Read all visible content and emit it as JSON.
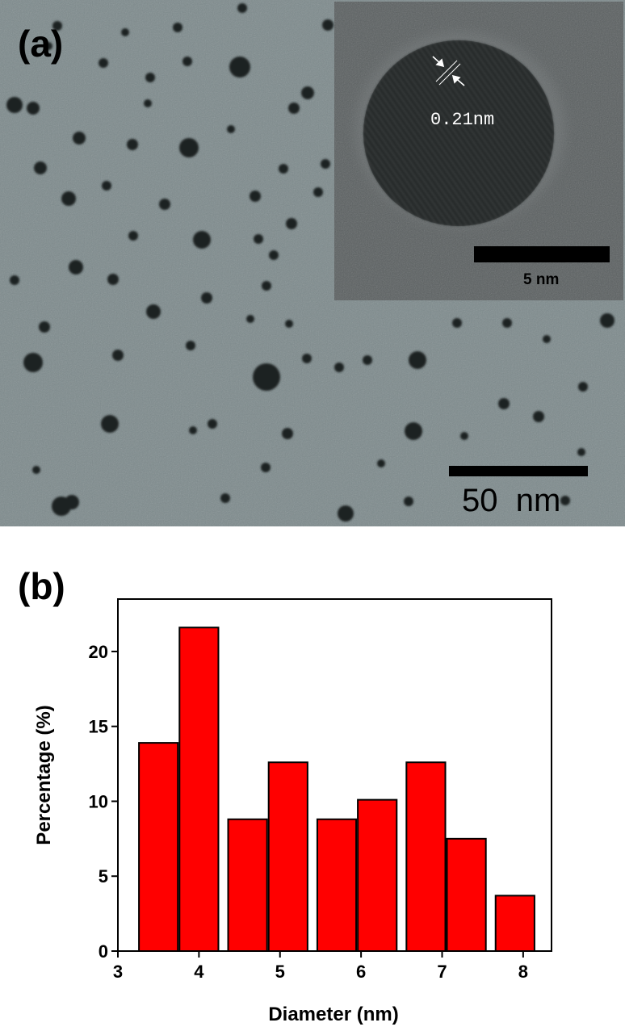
{
  "panel_a": {
    "label": "(a)",
    "inset_lattice_label": "0.21nm",
    "inset_scale_label": "5 nm",
    "main_scale_label": "50  nm"
  },
  "panel_b": {
    "label": "(b)"
  },
  "colors": {
    "micrograph_bg": "#7d8a8c",
    "particle": "#1e2424",
    "inset_bg": "#5a5f60",
    "bar_fill": "#ff0000",
    "bar_stroke": "#000000"
  },
  "chart_data": {
    "type": "bar",
    "title": "",
    "xlabel": "Diameter (nm)",
    "ylabel": "Percentage (%)",
    "x": [
      3.5,
      4.0,
      4.6,
      5.1,
      5.7,
      6.2,
      6.8,
      7.3,
      7.9
    ],
    "values": [
      13.9,
      21.6,
      8.8,
      12.6,
      8.8,
      10.1,
      12.6,
      7.5,
      3.7
    ],
    "bar_width": 0.48,
    "xlim": [
      3.0,
      8.35
    ],
    "ylim": [
      0,
      23.5
    ],
    "xticks": [
      3,
      4,
      5,
      6,
      7,
      8
    ],
    "yticks": [
      0,
      5,
      10,
      15,
      20
    ],
    "grid": false,
    "legend": "none"
  }
}
